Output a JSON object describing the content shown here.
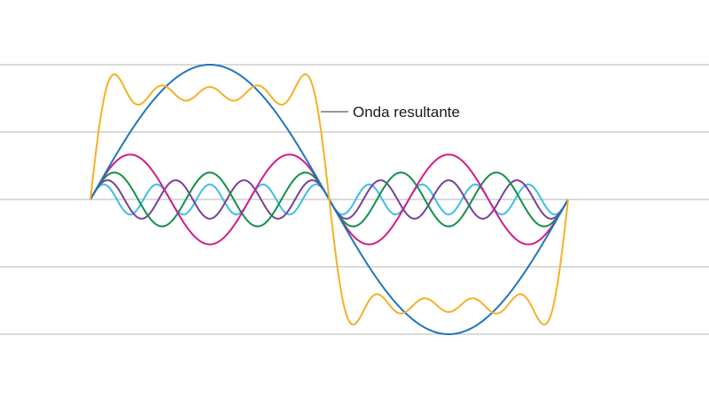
{
  "chart_data": {
    "type": "line",
    "title": "",
    "xlabel": "",
    "ylabel": "",
    "xlim": [
      0,
      1
    ],
    "ylim": [
      -1.45,
      2.1
    ],
    "grid": true,
    "gridlines_y": [
      -1,
      -0.5,
      0,
      0.5,
      1
    ],
    "annotation": {
      "text": "Onda resultante",
      "series_index": 0
    },
    "series": [
      {
        "kind": "sum",
        "color": "#f5b027",
        "harmonics": [
          1,
          3,
          5,
          7,
          9
        ],
        "amplitude": 0.7854
      },
      {
        "kind": "harmonic",
        "harmonic": 1,
        "amplitude": 1.0,
        "color": "#2175bd"
      },
      {
        "kind": "harmonic",
        "harmonic": 3,
        "amplitude": 0.3333,
        "color": "#d41c85"
      },
      {
        "kind": "harmonic",
        "harmonic": 5,
        "amplitude": 0.2,
        "color": "#129049"
      },
      {
        "kind": "harmonic",
        "harmonic": 7,
        "amplitude": 0.1429,
        "color": "#7a3f97"
      },
      {
        "kind": "harmonic",
        "harmonic": 9,
        "amplitude": 0.1111,
        "color": "#3ebde6"
      }
    ]
  }
}
